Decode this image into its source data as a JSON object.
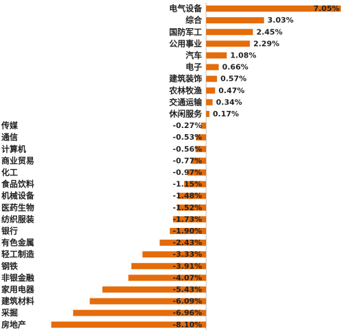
{
  "chart_data": {
    "type": "bar",
    "orientation": "horizontal",
    "categories": [
      "电气设备",
      "综合",
      "国防军工",
      "公用事业",
      "汽车",
      "电子",
      "建筑装饰",
      "农林牧渔",
      "交通运输",
      "休闲服务",
      "传媒",
      "通信",
      "计算机",
      "商业贸易",
      "化工",
      "食品饮料",
      "机械设备",
      "医药生物",
      "纺织服装",
      "银行",
      "有色金属",
      "轻工制造",
      "钢铁",
      "非银金融",
      "家用电器",
      "建筑材料",
      "采掘",
      "房地产"
    ],
    "values": [
      7.05,
      3.03,
      2.45,
      2.29,
      1.08,
      0.66,
      0.57,
      0.47,
      0.34,
      0.17,
      -0.27,
      -0.53,
      -0.56,
      -0.77,
      -0.97,
      -1.15,
      -1.48,
      -1.52,
      -1.73,
      -1.9,
      -2.43,
      -3.33,
      -3.91,
      -4.07,
      -5.43,
      -6.09,
      -6.96,
      -8.1
    ],
    "value_labels": [
      "7.05%",
      "3.03%",
      "2.45%",
      "2.29%",
      "1.08%",
      "0.66%",
      "0.57%",
      "0.47%",
      "0.34%",
      "0.17%",
      "-0.27%",
      "-0.53%",
      "-0.56%",
      "-0.77%",
      "-0.97%",
      "-1.15%",
      "-1.48%",
      "-1.52%",
      "-1.73%",
      "-1.90%",
      "-2.43%",
      "-3.33%",
      "-3.91%",
      "-4.07%",
      "-5.43%",
      "-6.09%",
      "-6.96%",
      "-8.10%"
    ],
    "xlim": [
      -8.1,
      7.05
    ],
    "bar_color": "#E46C0A",
    "grid": false,
    "legend": "none"
  }
}
